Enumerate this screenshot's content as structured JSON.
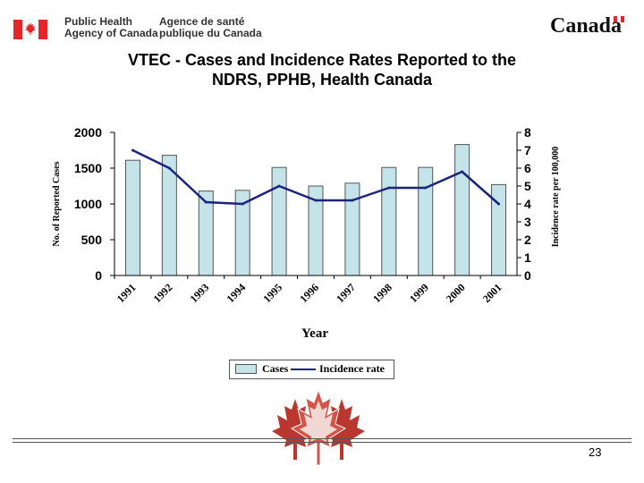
{
  "header": {
    "agency_en_line1": "Public Health",
    "agency_en_line2": "Agency of Canada",
    "agency_fr_line1": "Agence de santé",
    "agency_fr_line2": "publique du Canada",
    "wordmark": "Canada"
  },
  "page_number": "23",
  "colors": {
    "bar_fill": "#c5e4ea",
    "bar_stroke": "#555555",
    "line": "#1a237e",
    "brand_red": "#e4262a"
  },
  "chart_data": {
    "type": "bar+line",
    "title": "VTEC - Cases and Incidence Rates Reported to the NDRS, PPHB, Health Canada",
    "title_lines": [
      "VTEC - Cases and Incidence Rates Reported to the",
      "NDRS, PPHB, Health Canada"
    ],
    "xlabel": "Year",
    "ylabel_left": "No. of Reported Cases",
    "ylabel_right": "Incidence rate per 100,000",
    "categories": [
      "1991",
      "1992",
      "1993",
      "1994",
      "1995",
      "1996",
      "1997",
      "1998",
      "1999",
      "2000",
      "2001"
    ],
    "series": [
      {
        "name": "Cases",
        "kind": "bar",
        "axis": "left",
        "values": [
          1610,
          1680,
          1180,
          1190,
          1510,
          1250,
          1290,
          1510,
          1510,
          1830,
          1270
        ]
      },
      {
        "name": "Incidence rate",
        "kind": "line",
        "axis": "right",
        "values": [
          7.0,
          6.0,
          4.1,
          4.0,
          5.0,
          4.2,
          4.2,
          4.9,
          4.9,
          5.8,
          4.0
        ]
      }
    ],
    "ylim_left": [
      0,
      2000
    ],
    "yticks_left": [
      "0",
      "500",
      "1000",
      "1500",
      "2000"
    ],
    "ylim_right": [
      0,
      8
    ],
    "yticks_right": [
      "0",
      "1",
      "2",
      "3",
      "4",
      "5",
      "6",
      "7",
      "8"
    ],
    "grid": false,
    "legend_position": "bottom",
    "legend": [
      "Cases",
      "Incidence rate"
    ]
  }
}
